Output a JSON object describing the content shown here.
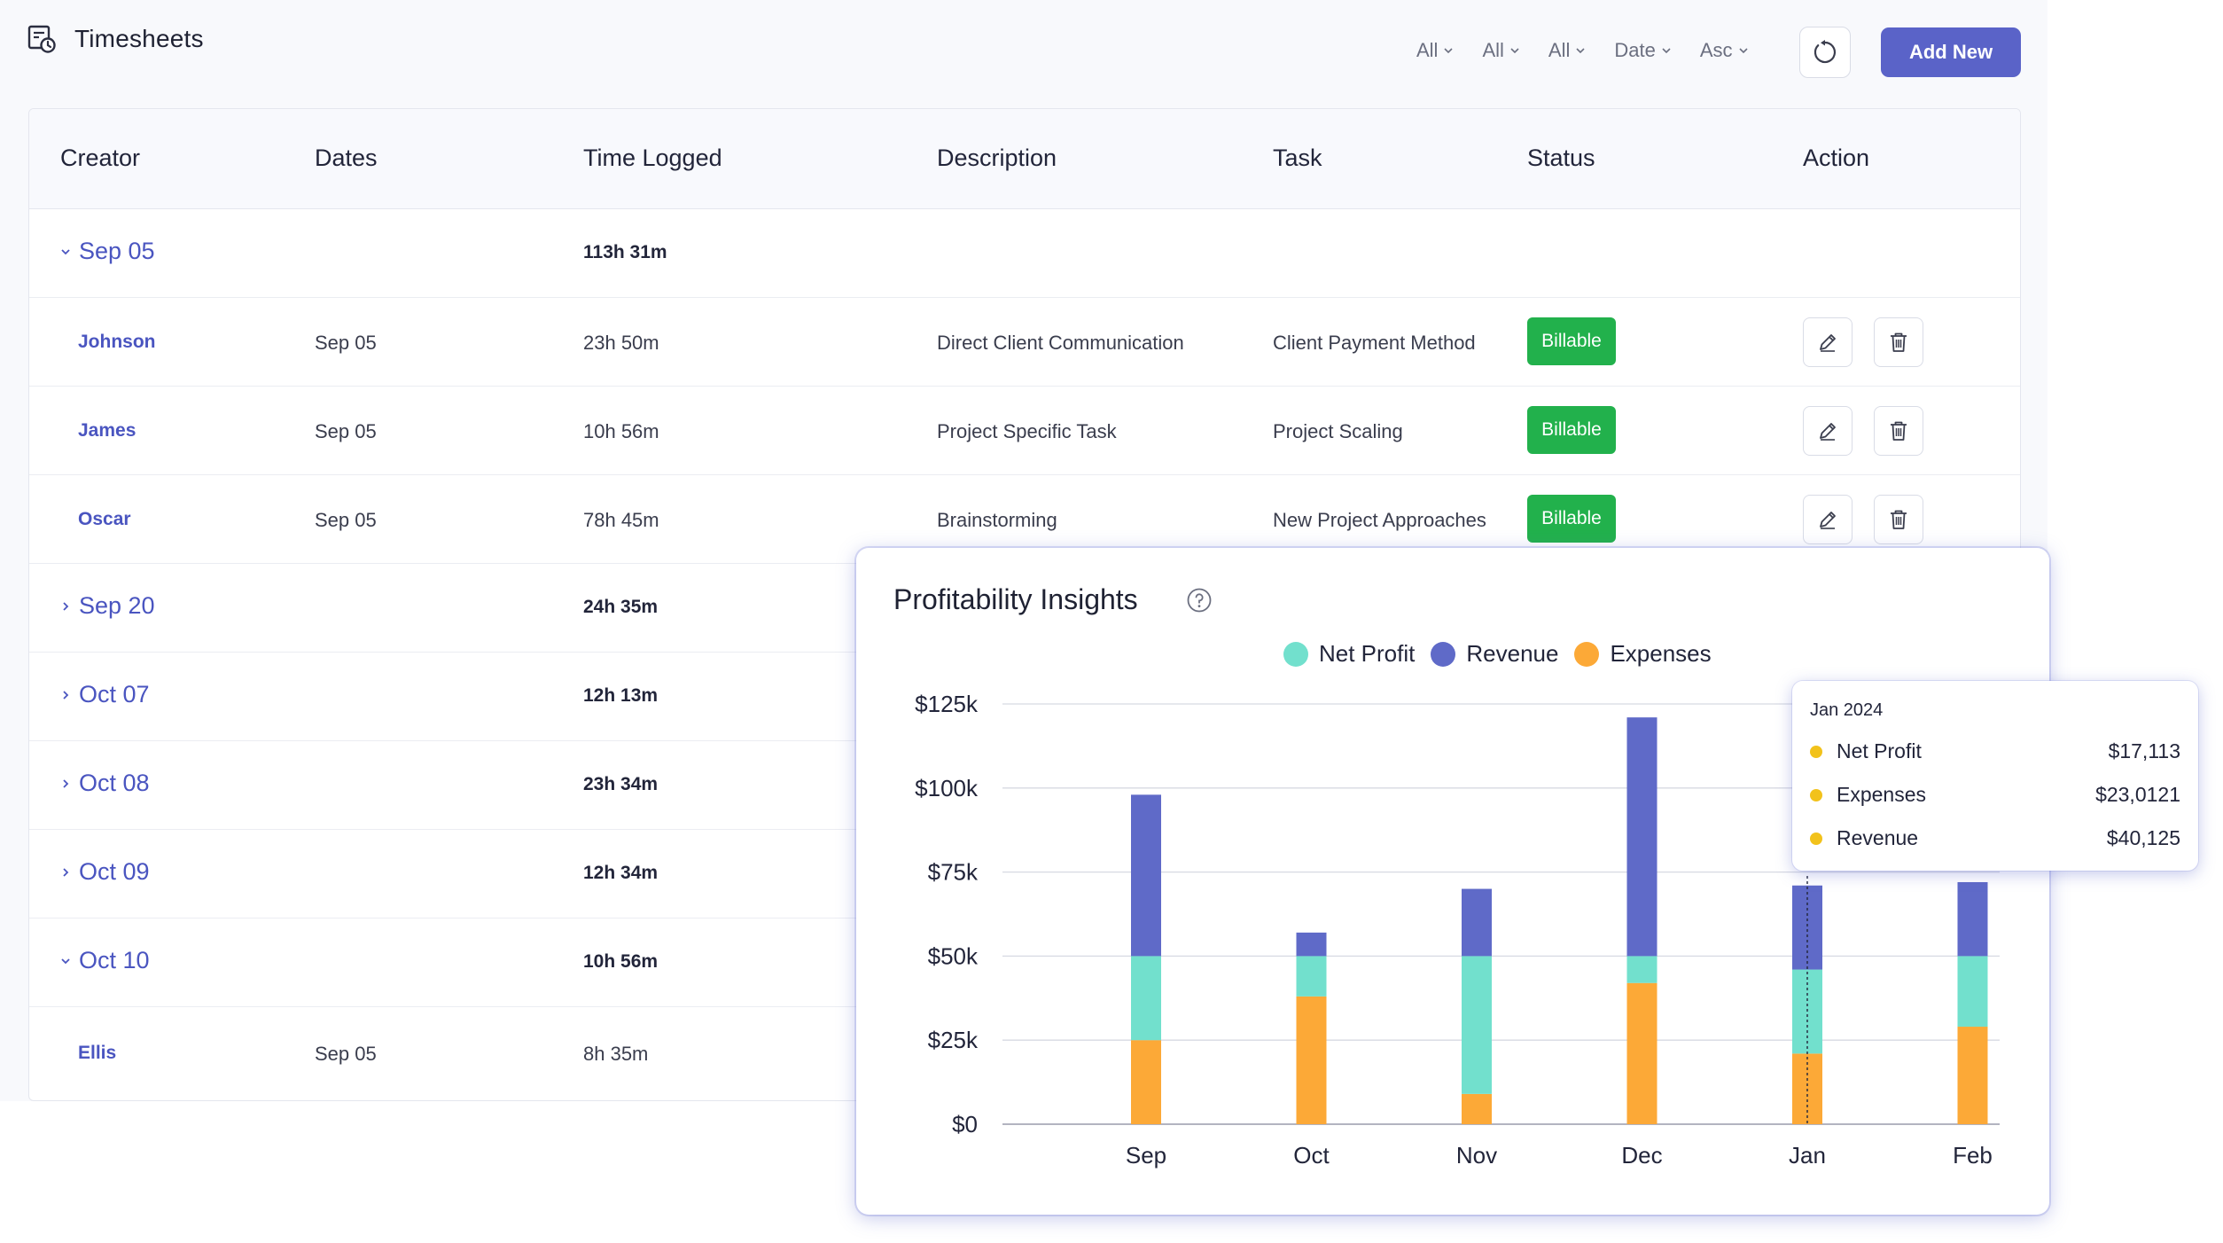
{
  "app": {
    "title": "Timesheets",
    "filters": [
      "All",
      "All",
      "All",
      "Date",
      "Asc"
    ],
    "add_button": "Add New"
  },
  "table": {
    "headers": [
      "Creator",
      "Dates",
      "Time Logged",
      "Description",
      "Task",
      "Status",
      "Action"
    ],
    "groups": [
      {
        "label": "Sep 05",
        "total": "113h 31m",
        "expanded": true,
        "rows": [
          {
            "creator": "Johnson",
            "date": "Sep 05",
            "time": "23h 50m",
            "description": "Direct Client Communication",
            "task": "Client Payment Method",
            "status": "Billable"
          },
          {
            "creator": "James",
            "date": "Sep 05",
            "time": "10h 56m",
            "description": "Project Specific Task",
            "task": "Project Scaling",
            "status": "Billable"
          },
          {
            "creator": "Oscar",
            "date": "Sep 05",
            "time": "78h 45m",
            "description": "Brainstorming",
            "task": "New Project Approaches",
            "status": "Billable"
          }
        ]
      },
      {
        "label": "Sep 20",
        "total": "24h 35m",
        "expanded": false,
        "rows": []
      },
      {
        "label": "Oct 07",
        "total": "12h 13m",
        "expanded": false,
        "rows": []
      },
      {
        "label": "Oct 08",
        "total": "23h 34m",
        "expanded": false,
        "rows": []
      },
      {
        "label": "Oct 09",
        "total": "12h 34m",
        "expanded": false,
        "rows": []
      },
      {
        "label": "Oct 10",
        "total": "10h 56m",
        "expanded": true,
        "rows": [
          {
            "creator": "Ellis",
            "date": "Sep 05",
            "time": "8h 35m",
            "description": "",
            "task": "",
            "status": ""
          }
        ]
      }
    ]
  },
  "insights": {
    "title": "Profitability Insights"
  },
  "chart_data": {
    "type": "bar",
    "stacked": true,
    "categories": [
      "Sep",
      "Oct",
      "Nov",
      "Dec",
      "Jan",
      "Feb"
    ],
    "series": [
      {
        "name": "Expenses",
        "color": "#fca937",
        "values": [
          25,
          38,
          9,
          42,
          21,
          29
        ]
      },
      {
        "name": "Net Profit",
        "color": "#72e0cd",
        "values": [
          25,
          12,
          41,
          8,
          25,
          21
        ]
      },
      {
        "name": "Revenue",
        "color": "#5f6ac8",
        "values": [
          48,
          7,
          20,
          71,
          25,
          22
        ]
      }
    ],
    "legend": [
      "Net Profit",
      "Revenue",
      "Expenses"
    ],
    "ylim": [
      0,
      125
    ],
    "yticks": [
      "$0",
      "$25k",
      "$50k",
      "$75k",
      "$100k",
      "$125k"
    ],
    "grid": true,
    "legend_position": "top"
  },
  "tooltip": {
    "title": "Jan 2024",
    "rows": [
      {
        "label": "Net Profit",
        "value": "$17,113"
      },
      {
        "label": "Expenses",
        "value": "$23,0121"
      },
      {
        "label": "Revenue",
        "value": "$40,125"
      }
    ]
  }
}
